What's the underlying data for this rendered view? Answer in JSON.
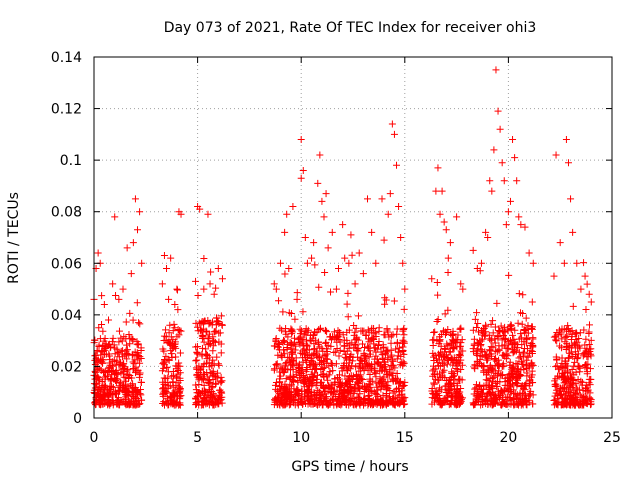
{
  "chart_data": {
    "type": "scatter",
    "title": "Day 073 of 2021, Rate Of TEC Index for receiver ohi3",
    "xlabel": "GPS time / hours",
    "ylabel": "ROTI / TECUs",
    "xlim": [
      0,
      25
    ],
    "ylim": [
      0,
      0.14
    ],
    "xticks": [
      0,
      5,
      10,
      15,
      20,
      25
    ],
    "yticks": [
      0,
      0.02,
      0.04,
      0.06,
      0.08,
      0.1,
      0.12,
      0.14
    ],
    "xtick_labels": [
      "0",
      "5",
      "10",
      "15",
      "20",
      "25"
    ],
    "ytick_labels": [
      "0",
      "0.02",
      "0.04",
      "0.06",
      "0.08",
      "0.1",
      "0.12",
      "0.14"
    ],
    "grid": true,
    "marker": "plus",
    "color": "#ff0000",
    "series": [
      {
        "points": [
          [
            0.0,
            0.046
          ],
          [
            0.1,
            0.058
          ],
          [
            0.2,
            0.064
          ],
          [
            0.3,
            0.06
          ],
          [
            0.5,
            0.044
          ],
          [
            0.7,
            0.038
          ],
          [
            0.9,
            0.052
          ],
          [
            1.0,
            0.078
          ],
          [
            1.2,
            0.046
          ],
          [
            1.4,
            0.05
          ],
          [
            1.6,
            0.066
          ],
          [
            1.8,
            0.056
          ],
          [
            1.9,
            0.068
          ],
          [
            2.0,
            0.085
          ],
          [
            2.1,
            0.073
          ],
          [
            2.2,
            0.08
          ],
          [
            2.3,
            0.06
          ],
          [
            3.3,
            0.052
          ],
          [
            3.4,
            0.063
          ],
          [
            3.5,
            0.058
          ],
          [
            3.6,
            0.046
          ],
          [
            3.7,
            0.062
          ],
          [
            3.9,
            0.044
          ],
          [
            4.0,
            0.05
          ],
          [
            4.1,
            0.08
          ],
          [
            4.2,
            0.079
          ],
          [
            4.9,
            0.053
          ],
          [
            5.0,
            0.082
          ],
          [
            5.1,
            0.081
          ],
          [
            5.3,
            0.05
          ],
          [
            5.5,
            0.079
          ],
          [
            5.6,
            0.052
          ],
          [
            5.8,
            0.048
          ],
          [
            6.0,
            0.058
          ],
          [
            6.2,
            0.054
          ],
          [
            8.7,
            0.052
          ],
          [
            8.8,
            0.05
          ],
          [
            9.0,
            0.06
          ],
          [
            9.2,
            0.072
          ],
          [
            9.3,
            0.079
          ],
          [
            9.4,
            0.058
          ],
          [
            9.6,
            0.082
          ],
          [
            9.8,
            0.046
          ],
          [
            10.0,
            0.108
          ],
          [
            10.0,
            0.093
          ],
          [
            10.1,
            0.096
          ],
          [
            10.2,
            0.07
          ],
          [
            10.3,
            0.06
          ],
          [
            10.5,
            0.062
          ],
          [
            10.6,
            0.068
          ],
          [
            10.8,
            0.091
          ],
          [
            10.9,
            0.102
          ],
          [
            11.0,
            0.084
          ],
          [
            11.1,
            0.078
          ],
          [
            11.2,
            0.087
          ],
          [
            11.3,
            0.066
          ],
          [
            11.5,
            0.072
          ],
          [
            11.7,
            0.05
          ],
          [
            11.8,
            0.058
          ],
          [
            12.0,
            0.075
          ],
          [
            12.1,
            0.062
          ],
          [
            12.3,
            0.06
          ],
          [
            12.4,
            0.071
          ],
          [
            12.6,
            0.052
          ],
          [
            12.8,
            0.064
          ],
          [
            13.0,
            0.056
          ],
          [
            13.2,
            0.085
          ],
          [
            13.4,
            0.072
          ],
          [
            13.6,
            0.06
          ],
          [
            13.9,
            0.085
          ],
          [
            14.0,
            0.069
          ],
          [
            14.2,
            0.079
          ],
          [
            14.3,
            0.087
          ],
          [
            14.4,
            0.114
          ],
          [
            14.5,
            0.11
          ],
          [
            14.6,
            0.098
          ],
          [
            14.7,
            0.082
          ],
          [
            14.8,
            0.07
          ],
          [
            14.9,
            0.06
          ],
          [
            15.0,
            0.05
          ],
          [
            16.3,
            0.054
          ],
          [
            16.5,
            0.088
          ],
          [
            16.6,
            0.097
          ],
          [
            16.7,
            0.079
          ],
          [
            16.8,
            0.088
          ],
          [
            16.9,
            0.076
          ],
          [
            17.0,
            0.073
          ],
          [
            17.1,
            0.062
          ],
          [
            17.2,
            0.068
          ],
          [
            17.5,
            0.078
          ],
          [
            17.7,
            0.052
          ],
          [
            17.8,
            0.05
          ],
          [
            18.3,
            0.065
          ],
          [
            18.5,
            0.058
          ],
          [
            18.7,
            0.06
          ],
          [
            18.9,
            0.072
          ],
          [
            19.0,
            0.07
          ],
          [
            19.1,
            0.092
          ],
          [
            19.2,
            0.088
          ],
          [
            19.3,
            0.104
          ],
          [
            19.4,
            0.135
          ],
          [
            19.5,
            0.119
          ],
          [
            19.6,
            0.112
          ],
          [
            19.7,
            0.099
          ],
          [
            19.8,
            0.092
          ],
          [
            19.9,
            0.075
          ],
          [
            20.0,
            0.08
          ],
          [
            20.1,
            0.084
          ],
          [
            20.2,
            0.108
          ],
          [
            20.3,
            0.101
          ],
          [
            20.4,
            0.092
          ],
          [
            20.5,
            0.078
          ],
          [
            20.6,
            0.075
          ],
          [
            20.8,
            0.074
          ],
          [
            21.0,
            0.064
          ],
          [
            21.2,
            0.06
          ],
          [
            22.2,
            0.055
          ],
          [
            22.3,
            0.102
          ],
          [
            22.5,
            0.068
          ],
          [
            22.7,
            0.06
          ],
          [
            22.8,
            0.108
          ],
          [
            22.9,
            0.099
          ],
          [
            23.0,
            0.085
          ],
          [
            23.1,
            0.072
          ],
          [
            23.3,
            0.06
          ],
          [
            23.5,
            0.05
          ],
          [
            23.7,
            0.055
          ],
          [
            23.9,
            0.048
          ],
          [
            24.0,
            0.045
          ]
        ]
      }
    ]
  }
}
